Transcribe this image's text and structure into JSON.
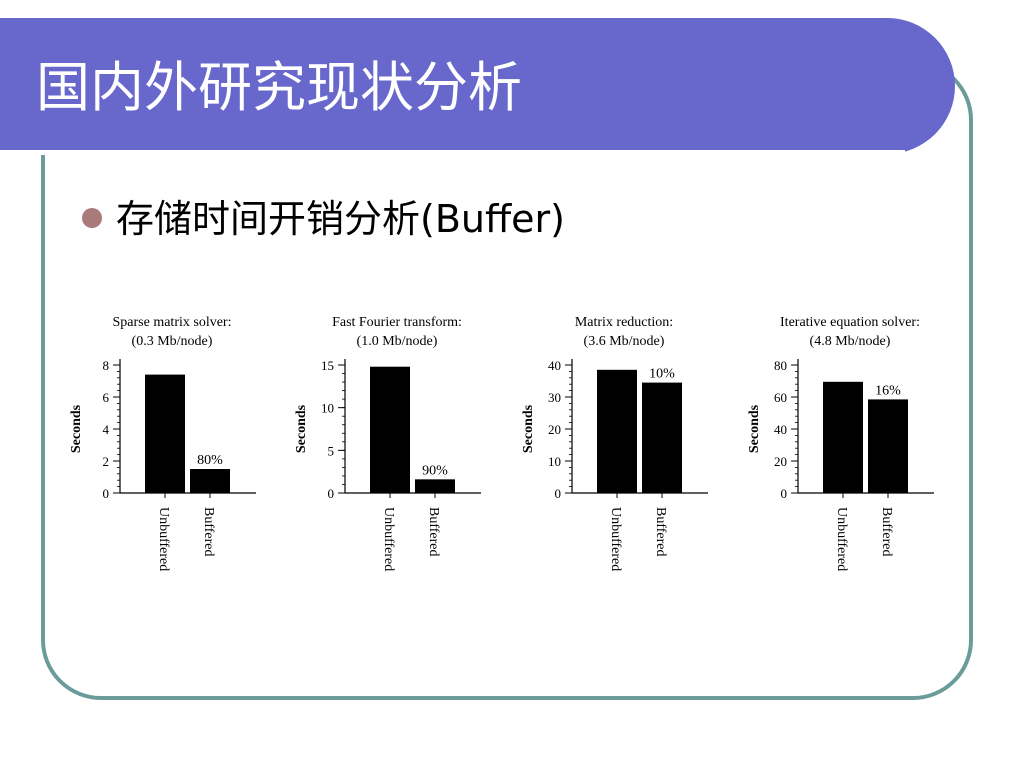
{
  "slide": {
    "title": "国内外研究现状分析",
    "bullet": "存储时间开销分析(Buffer)"
  },
  "colors": {
    "title_bar": "#6767cc",
    "frame_border": "#6b9b9b",
    "bullet": "#a87a7a",
    "bars": "#000000"
  },
  "chart_data": [
    {
      "type": "bar",
      "title": "Sparse matrix solver:",
      "subtitle": "(0.3 Mb/node)",
      "ylabel": "Seconds",
      "categories": [
        "Unbuffered",
        "Buffered"
      ],
      "values": [
        7.4,
        1.5
      ],
      "ylim": [
        0,
        8
      ],
      "ticks": [
        0,
        2,
        4,
        6,
        8
      ],
      "annotation": "80%"
    },
    {
      "type": "bar",
      "title": "Fast Fourier transform:",
      "subtitle": "(1.0 Mb/node)",
      "ylabel": "Seconds",
      "categories": [
        "Unbuffered",
        "Buffered"
      ],
      "values": [
        14.8,
        1.6
      ],
      "ylim": [
        0,
        15
      ],
      "ticks": [
        0,
        5,
        10,
        15
      ],
      "annotation": "90%"
    },
    {
      "type": "bar",
      "title": "Matrix reduction:",
      "subtitle": "(3.6 Mb/node)",
      "ylabel": "Seconds",
      "categories": [
        "Unbuffered",
        "Buffered"
      ],
      "values": [
        38.5,
        34.5
      ],
      "ylim": [
        0,
        40
      ],
      "ticks": [
        0,
        10,
        20,
        30,
        40
      ],
      "annotation": "10%"
    },
    {
      "type": "bar",
      "title": "Iterative equation solver:",
      "subtitle": "(4.8 Mb/node)",
      "ylabel": "Seconds",
      "categories": [
        "Unbuffered",
        "Buffered"
      ],
      "values": [
        69.5,
        58.5
      ],
      "ylim": [
        0,
        80
      ],
      "ticks": [
        0,
        20,
        40,
        60,
        80
      ],
      "annotation": "16%"
    }
  ]
}
